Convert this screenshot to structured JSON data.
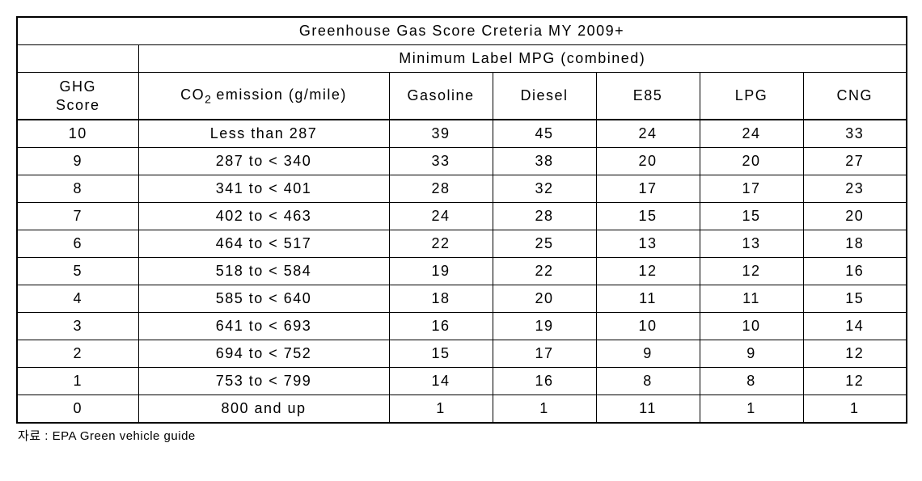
{
  "table": {
    "title": "Greenhouse Gas Score Creteria MY 2009+",
    "group_header": "Minimum Label MPG (combined)",
    "columns": {
      "score": "GHG\nScore",
      "co2_prefix": "CO",
      "co2_sub": "2",
      "co2_suffix": " emission (g/mile)",
      "gasoline": "Gasoline",
      "diesel": "Diesel",
      "e85": "E85",
      "lpg": "LPG",
      "cng": "CNG"
    },
    "rows": [
      {
        "score": "10",
        "co2": "Less than 287",
        "gasoline": "39",
        "diesel": "45",
        "e85": "24",
        "lpg": "24",
        "cng": "33"
      },
      {
        "score": "9",
        "co2": "287 to < 340",
        "gasoline": "33",
        "diesel": "38",
        "e85": "20",
        "lpg": "20",
        "cng": "27"
      },
      {
        "score": "8",
        "co2": "341 to < 401",
        "gasoline": "28",
        "diesel": "32",
        "e85": "17",
        "lpg": "17",
        "cng": "23"
      },
      {
        "score": "7",
        "co2": "402 to < 463",
        "gasoline": "24",
        "diesel": "28",
        "e85": "15",
        "lpg": "15",
        "cng": "20"
      },
      {
        "score": "6",
        "co2": "464 to < 517",
        "gasoline": "22",
        "diesel": "25",
        "e85": "13",
        "lpg": "13",
        "cng": "18"
      },
      {
        "score": "5",
        "co2": "518 to < 584",
        "gasoline": "19",
        "diesel": "22",
        "e85": "12",
        "lpg": "12",
        "cng": "16"
      },
      {
        "score": "4",
        "co2": "585 to < 640",
        "gasoline": "18",
        "diesel": "20",
        "e85": "11",
        "lpg": "11",
        "cng": "15"
      },
      {
        "score": "3",
        "co2": "641 to < 693",
        "gasoline": "16",
        "diesel": "19",
        "e85": "10",
        "lpg": "10",
        "cng": "14"
      },
      {
        "score": "2",
        "co2": "694 to < 752",
        "gasoline": "15",
        "diesel": "17",
        "e85": "9",
        "lpg": "9",
        "cng": "12"
      },
      {
        "score": "1",
        "co2": "753 to < 799",
        "gasoline": "14",
        "diesel": "16",
        "e85": "8",
        "lpg": "8",
        "cng": "12"
      },
      {
        "score": "0",
        "co2": "800 and up",
        "gasoline": "1",
        "diesel": "1",
        "e85": "11",
        "lpg": "1",
        "cng": "1"
      }
    ],
    "source": "자료 : EPA Green vehicle guide",
    "border_color": "#000000",
    "background_color": "#ffffff",
    "font_size_cell": 18,
    "font_size_source": 15
  }
}
